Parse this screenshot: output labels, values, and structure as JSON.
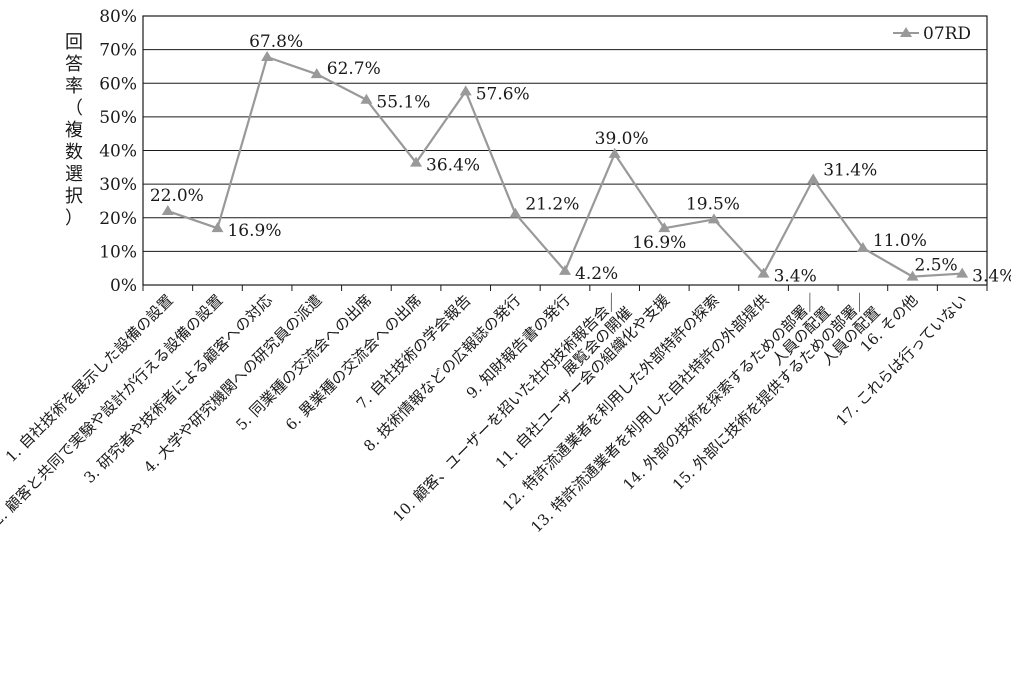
{
  "chart_data": {
    "type": "line",
    "ylabel": "回答率（複数選択）",
    "ylim": [
      0,
      80
    ],
    "yticks": [
      "0%",
      "10%",
      "20%",
      "30%",
      "40%",
      "50%",
      "60%",
      "70%",
      "80%"
    ],
    "grid": true,
    "legend_position": "top-right",
    "categories": [
      "1. 自社技術を展示した設備の設置",
      "2. 顧客と共同で実験や設計が行える設備の設置",
      "3. 研究者や技術者による顧客への対応",
      "4. 大学や研究機関への研究員の派遣",
      "5. 同業種の交流会への出席",
      "6. 異業種の交流会への出席",
      "7. 自社技術の学会報告",
      "8. 技術情報などの広報誌の発行",
      "9. 知財報告書の発行",
      "10. 顧客、ユーザーを招いた社内技術報告会／展覧会の開催",
      "11. 自社ユーザー会の組織化や支援",
      "12. 特許流通業者を利用した外部特許の探索",
      "13. 特許流通業者を利用した自社特許の外部提供",
      "14. 外部の技術を探索するための部署／人員の配置",
      "15. 外部に技術を提供するための部署／人員の配置",
      "16. その他",
      "17. これらは行っていない"
    ],
    "series": [
      {
        "name": "07RD",
        "color": "#999999",
        "values": [
          22.0,
          16.9,
          67.8,
          62.7,
          55.1,
          36.4,
          57.6,
          21.2,
          4.2,
          39.0,
          16.9,
          19.5,
          3.4,
          31.4,
          11.0,
          2.5,
          3.4
        ],
        "labels": [
          "22.0%",
          "16.9%",
          "67.8%",
          "62.7%",
          "55.1%",
          "36.4%",
          "57.6%",
          "21.2%",
          "4.2%",
          "39.0%",
          "16.9%",
          "19.5%",
          "3.4%",
          "31.4%",
          "11.0%",
          "2.5%",
          "3.4%"
        ]
      }
    ]
  }
}
